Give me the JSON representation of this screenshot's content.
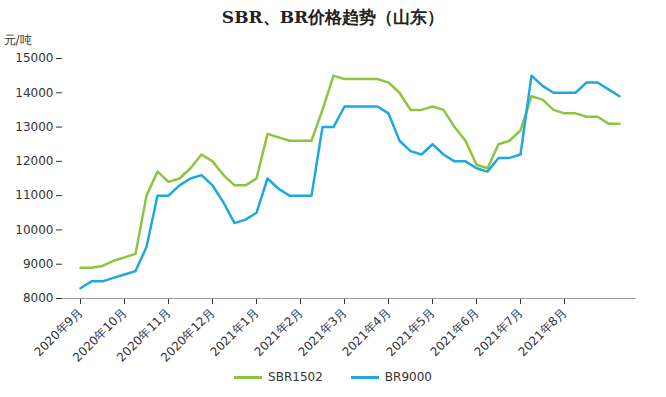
{
  "chart_data": {
    "type": "line",
    "title": "SBR、BR价格趋势（山东）",
    "y_label": "元/吨",
    "categories": [
      "2020年9月",
      null,
      null,
      null,
      "2020年10月",
      null,
      null,
      null,
      "2020年11月",
      null,
      null,
      null,
      "2020年12月",
      null,
      null,
      null,
      "2021年1月",
      null,
      null,
      null,
      "2021年2月",
      null,
      null,
      null,
      "2021年3月",
      null,
      null,
      null,
      "2021年4月",
      null,
      null,
      null,
      "2021年5月",
      null,
      null,
      null,
      "2021年6月",
      null,
      null,
      null,
      "2021年7月",
      null,
      null,
      null,
      "2021年8月",
      null,
      null,
      null,
      null,
      null
    ],
    "series": [
      {
        "name": "SBR1502",
        "color": "#8cc63e",
        "values": [
          8900,
          8900,
          8950,
          9100,
          9200,
          9300,
          11000,
          11700,
          11400,
          11500,
          11800,
          12200,
          12000,
          11600,
          11300,
          11300,
          11500,
          12800,
          12700,
          12600,
          12600,
          12600,
          13500,
          14500,
          14400,
          14400,
          14400,
          14400,
          14300,
          14000,
          13500,
          13500,
          13600,
          13500,
          13000,
          12600,
          11900,
          11800,
          12500,
          12600,
          12900,
          13900,
          13800,
          13500,
          13400,
          13400,
          13300,
          13300,
          13100,
          13100
        ]
      },
      {
        "name": "BR9000",
        "color": "#1ea8e0",
        "values": [
          8300,
          8500,
          8500,
          8600,
          8700,
          8800,
          9500,
          11000,
          11000,
          11300,
          11500,
          11600,
          11300,
          10800,
          10200,
          10300,
          10500,
          11500,
          11200,
          11000,
          11000,
          11000,
          13000,
          13000,
          13600,
          13600,
          13600,
          13600,
          13400,
          12600,
          12300,
          12200,
          12500,
          12200,
          12000,
          12000,
          11800,
          11700,
          12100,
          12100,
          12200,
          14500,
          14200,
          14000,
          14000,
          14000,
          14300,
          14300,
          14100,
          13900
        ]
      }
    ],
    "ylim": [
      8000,
      15000
    ],
    "yticks": [
      8000,
      9000,
      10000,
      11000,
      12000,
      13000,
      14000,
      15000
    ],
    "grid": false,
    "legend": "bottom"
  }
}
